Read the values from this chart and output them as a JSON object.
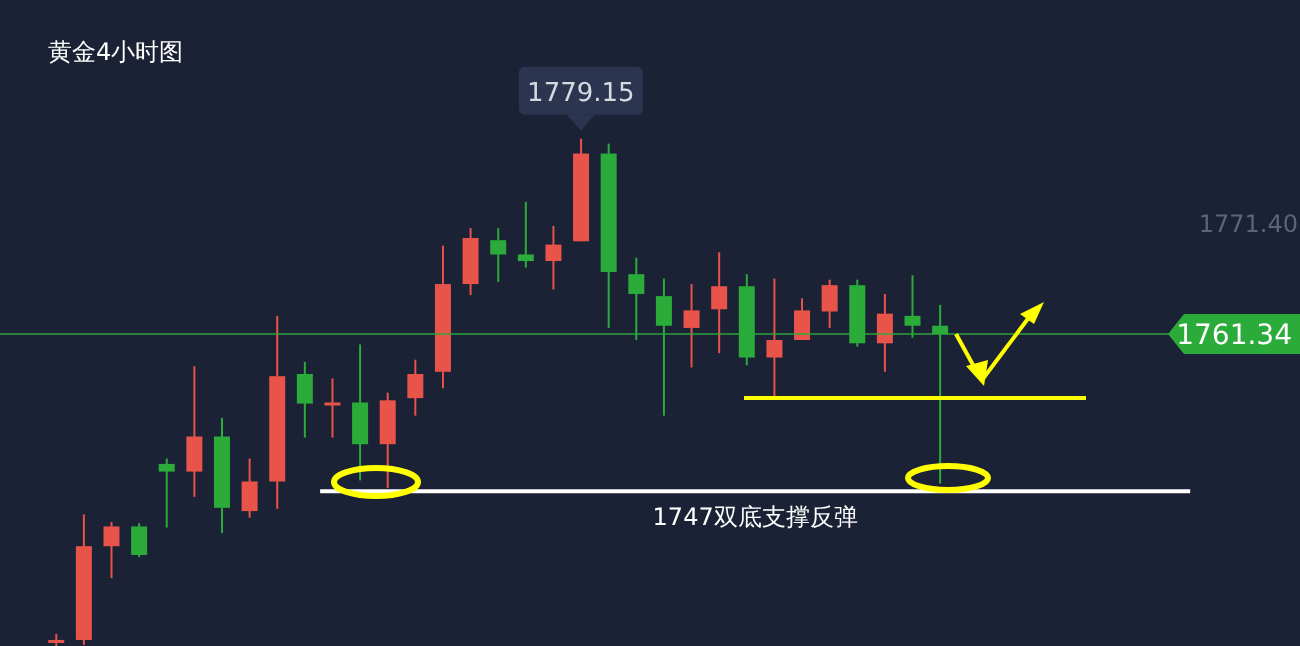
{
  "chart_data": {
    "type": "candlestick",
    "title": "黄金4小时图",
    "categories": [
      null,
      null,
      null,
      null,
      null,
      null,
      null,
      null,
      null,
      null,
      null,
      null,
      null,
      null,
      null,
      null,
      null,
      null,
      null,
      null,
      null,
      null,
      null,
      null,
      null,
      null,
      null,
      null,
      null,
      null,
      null,
      null,
      null
    ],
    "ohlc": [
      [
        1733.2,
        1734.0,
        1732.9,
        1733.45
      ],
      [
        1733.45,
        1744.9,
        1733.0,
        1742.0
      ],
      [
        1742.0,
        1744.2,
        1739.1,
        1743.8
      ],
      [
        1743.8,
        1744.1,
        1741.0,
        1741.2
      ],
      [
        1749.5,
        1750.0,
        1743.7,
        1748.8
      ],
      [
        1748.8,
        1758.4,
        1746.5,
        1752.0
      ],
      [
        1752.0,
        1753.7,
        1743.2,
        1745.5
      ],
      [
        1745.2,
        1750.0,
        1744.6,
        1747.9
      ],
      [
        1747.9,
        1763.0,
        1745.4,
        1757.5
      ],
      [
        1757.7,
        1758.8,
        1751.9,
        1755.0
      ],
      [
        1755.0,
        1757.3,
        1751.9,
        1755.1
      ],
      [
        1755.1,
        1760.4,
        1748.0,
        1751.3
      ],
      [
        1751.3,
        1756.0,
        1747.3,
        1755.3
      ],
      [
        1755.5,
        1759.0,
        1753.9,
        1757.7
      ],
      [
        1757.9,
        1769.4,
        1756.4,
        1765.9
      ],
      [
        1765.9,
        1771.0,
        1764.9,
        1770.1
      ],
      [
        1769.9,
        1771.0,
        1766.1,
        1768.6
      ],
      [
        1768.6,
        1773.4,
        1767.4,
        1768.0
      ],
      [
        1768.0,
        1771.2,
        1765.4,
        1769.5
      ],
      [
        1769.8,
        1779.15,
        1769.8,
        1777.8
      ],
      [
        1777.8,
        1778.7,
        1761.9,
        1767.0
      ],
      [
        1766.8,
        1768.3,
        1760.8,
        1765.0
      ],
      [
        1764.8,
        1766.4,
        1753.9,
        1762.1
      ],
      [
        1761.9,
        1765.9,
        1758.3,
        1763.5
      ],
      [
        1763.6,
        1768.8,
        1759.6,
        1765.7
      ],
      [
        1765.7,
        1766.8,
        1758.5,
        1759.2
      ],
      [
        1759.2,
        1766.4,
        1755.6,
        1760.8
      ],
      [
        1760.8,
        1764.6,
        1760.8,
        1763.5
      ],
      [
        1763.4,
        1766.3,
        1761.9,
        1765.8
      ],
      [
        1765.8,
        1766.3,
        1760.2,
        1760.5
      ],
      [
        1760.5,
        1765.0,
        1757.9,
        1763.2
      ],
      [
        1763.0,
        1766.7,
        1761.0,
        1762.1
      ],
      [
        1762.1,
        1764.0,
        1747.7,
        1761.34
      ]
    ],
    "colors": [
      "#e8534a",
      "#e8534a",
      "#e8534a",
      "#2aab3a",
      "#2aab3a",
      "#e8534a",
      "#2aab3a",
      "#e8534a",
      "#e8534a",
      "#2aab3a",
      "#e8534a",
      "#2aab3a",
      "#e8534a",
      "#e8534a",
      "#e8534a",
      "#e8534a",
      "#2aab3a",
      "#2aab3a",
      "#e8534a",
      "#e8534a",
      "#2aab3a",
      "#2aab3a",
      "#2aab3a",
      "#e8534a",
      "#e8534a",
      "#2aab3a",
      "#e8534a",
      "#e8534a",
      "#e8534a",
      "#2aab3a",
      "#e8534a",
      "#2aab3a",
      "#2aab3a"
    ],
    "ylim": [
      1732.9,
      1791.8
    ],
    "grid": false,
    "legend": false,
    "ref_lines": [
      {
        "axis": "y",
        "value": 1761.34,
        "label": "1761.34",
        "color": "#2aab3a"
      },
      {
        "axis": "y",
        "value": 1747,
        "label": "1747双底支撑反弹",
        "color": "#ffffff"
      }
    ],
    "annotations": [
      {
        "text": "1779.15",
        "y": 1779.15
      },
      "1771.40"
    ]
  }
}
